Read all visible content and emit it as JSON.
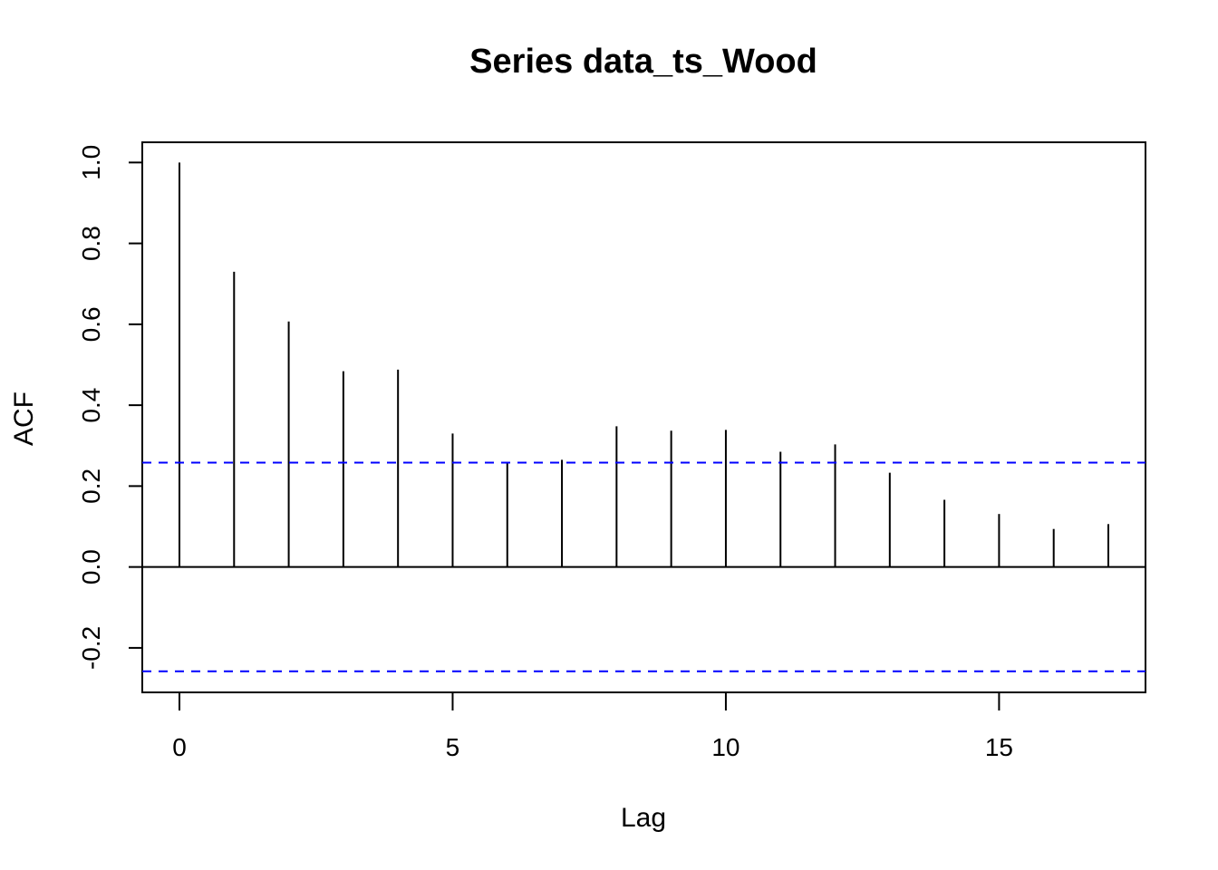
{
  "chart_data": {
    "type": "bar",
    "title": "Series  data_ts_Wood",
    "xlabel": "Lag",
    "ylabel": "ACF",
    "xlim": [
      -0.68,
      17.68
    ],
    "ylim": [
      -0.31,
      1.05
    ],
    "x_ticks": [
      0,
      5,
      10,
      15
    ],
    "y_ticks": [
      -0.2,
      0.0,
      0.2,
      0.4,
      0.6,
      0.8,
      1.0
    ],
    "y_tick_labels": [
      "-0.2",
      "0.0",
      "0.2",
      "0.4",
      "0.6",
      "0.8",
      "1.0"
    ],
    "lags": [
      0,
      1,
      2,
      3,
      4,
      5,
      6,
      7,
      8,
      9,
      10,
      11,
      12,
      13,
      14,
      15,
      16,
      17
    ],
    "values": [
      1.0,
      0.73,
      0.607,
      0.484,
      0.488,
      0.33,
      0.258,
      0.265,
      0.348,
      0.337,
      0.339,
      0.285,
      0.303,
      0.233,
      0.166,
      0.131,
      0.094,
      0.106
    ],
    "confidence_bound": 0.258,
    "confidence_color": "#0000ff",
    "bar_color": "#000000",
    "zero_line": true,
    "grid": false
  }
}
